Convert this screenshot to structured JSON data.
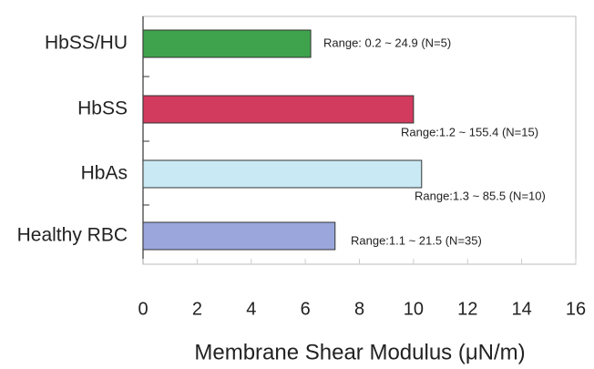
{
  "chart_data": {
    "type": "bar",
    "orientation": "horizontal",
    "xlabel": "Membrane Shear Modulus (μN/m)",
    "categories": [
      "HbSS/HU",
      "HbSS",
      "HbAs",
      "Healthy RBC"
    ],
    "values": [
      6.2,
      10.0,
      10.3,
      7.1
    ],
    "colors": [
      "#3fa34d",
      "#d23a5e",
      "#c9e9f5",
      "#9aa6dc"
    ],
    "annotations": [
      "Range: 0.2 ~ 24.9 (N=5)",
      "Range:1.2 ~ 155.4 (N=15)",
      "Range:1.3 ~ 85.5 (N=10)",
      "Range:1.1 ~ 21.5 (N=35)"
    ],
    "xlim": [
      0,
      16
    ],
    "xticks": [
      0,
      2,
      4,
      6,
      8,
      10,
      12,
      14,
      16
    ]
  }
}
